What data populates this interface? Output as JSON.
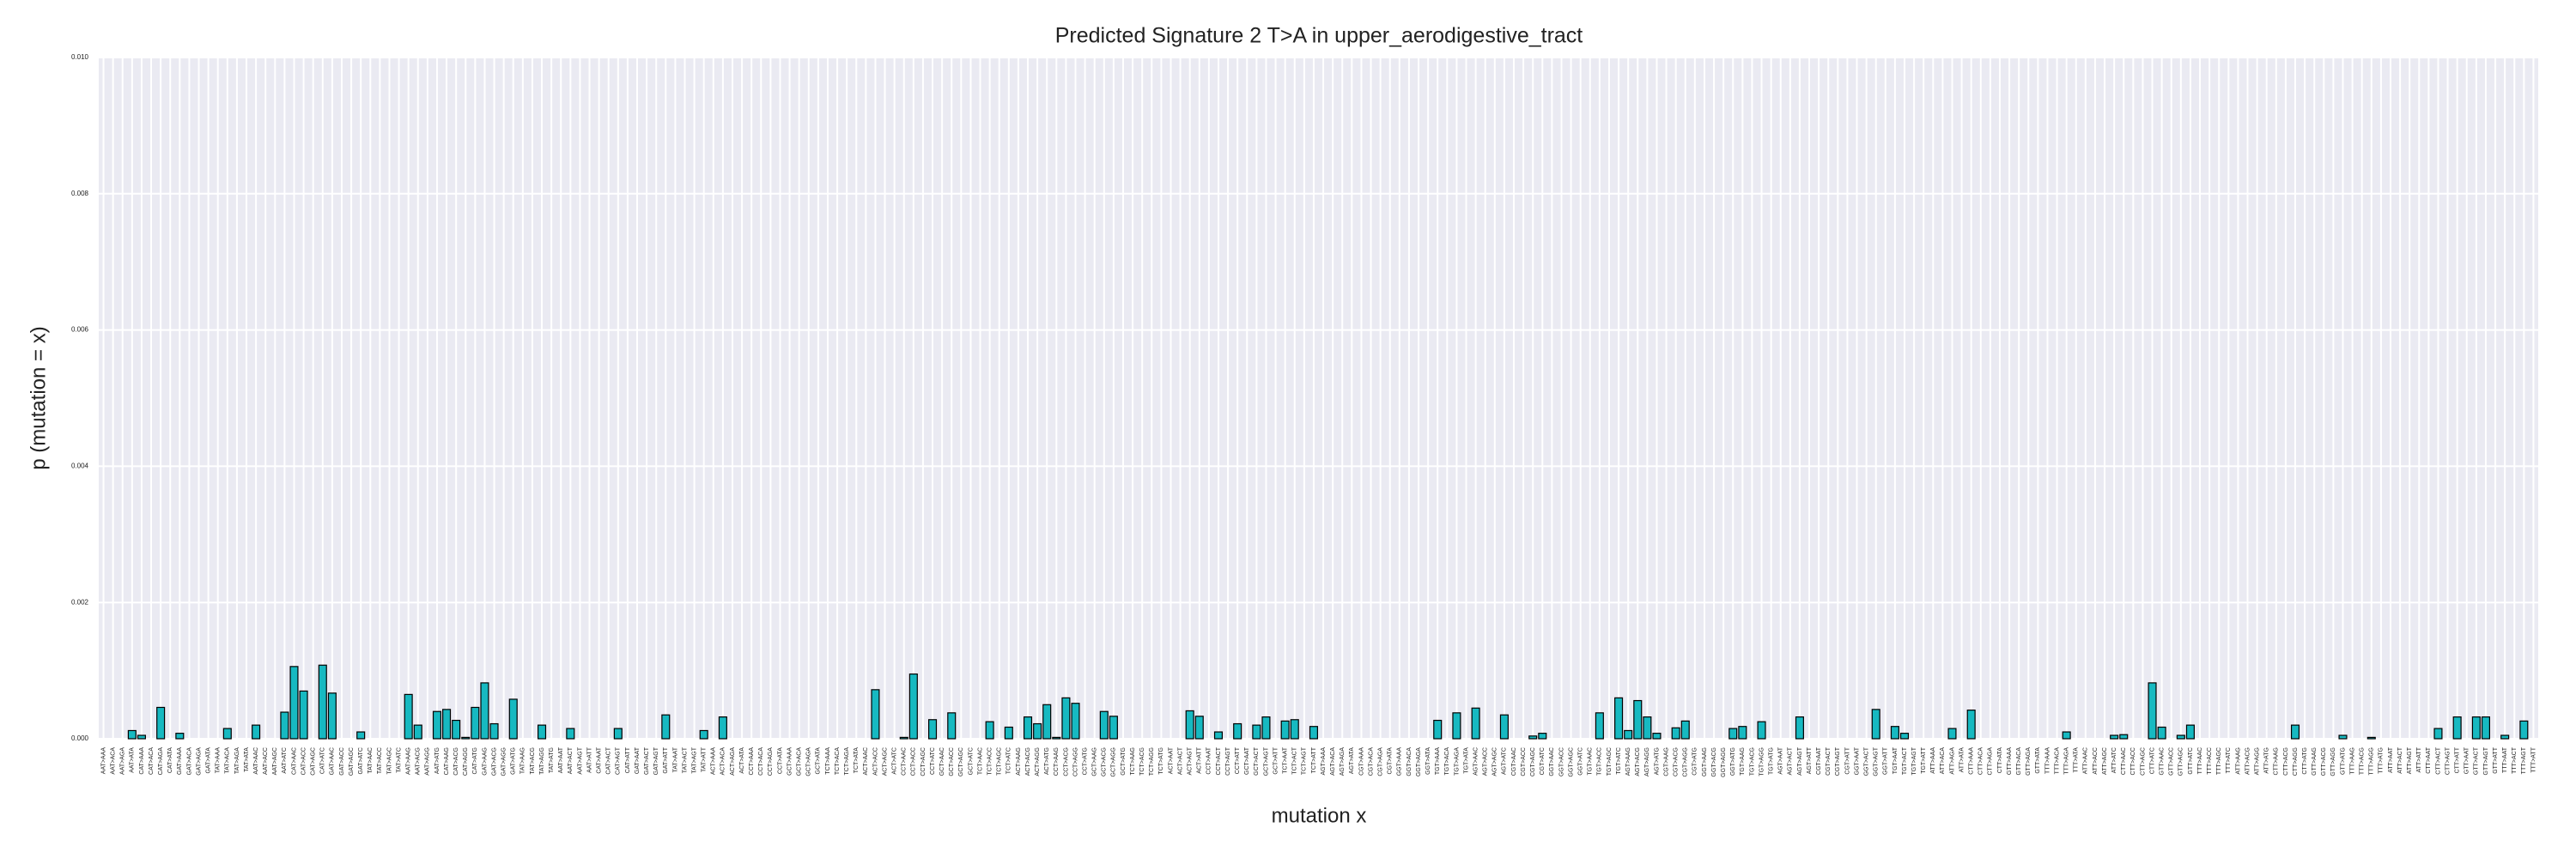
{
  "chart_data": {
    "type": "bar",
    "title": "Predicted Signature 2 T>A in upper_aerodigestive_tract",
    "xlabel": "mutation x",
    "ylabel": "p (mutation = x)",
    "color": "#17b9c1",
    "grid": true,
    "ylim": [
      0,
      0.01
    ],
    "yticks": [
      {
        "value": 0,
        "label": "0.000"
      },
      {
        "value": 0.002,
        "label": "0.002"
      },
      {
        "value": 0.004,
        "label": "0.004"
      },
      {
        "value": 0.006,
        "label": "0.006"
      },
      {
        "value": 0.008,
        "label": "0.008"
      },
      {
        "value": 0.01,
        "label": "0.010"
      }
    ],
    "categories": [
      "AAT>AAA",
      "AAT>ACA",
      "AAT>AGA",
      "AAT>ATA",
      "CAT>AAA",
      "CAT>ACA",
      "CAT>AGA",
      "CAT>ATA",
      "GAT>AAA",
      "GAT>ACA",
      "GAT>AGA",
      "GAT>ATA",
      "TAT>AAA",
      "TAT>ACA",
      "TAT>AGA",
      "TAT>ATA",
      "AAT>AAC",
      "AAT>ACC",
      "AAT>AGC",
      "AAT>ATC",
      "CAT>AAC",
      "CAT>ACC",
      "CAT>AGC",
      "CAT>ATC",
      "GAT>AAC",
      "GAT>ACC",
      "GAT>AGC",
      "GAT>ATC",
      "TAT>AAC",
      "TAT>ACC",
      "TAT>AGC",
      "TAT>ATC",
      "AAT>AAG",
      "AAT>ACG",
      "AAT>AGG",
      "AAT>ATG",
      "CAT>AAG",
      "CAT>ACG",
      "CAT>AGG",
      "CAT>ATG",
      "GAT>AAG",
      "GAT>ACG",
      "GAT>AGG",
      "GAT>ATG",
      "TAT>AAG",
      "TAT>ACG",
      "TAT>AGG",
      "TAT>ATG",
      "AAT>AAT",
      "AAT>ACT",
      "AAT>AGT",
      "AAT>ATT",
      "CAT>AAT",
      "CAT>ACT",
      "CAT>AGT",
      "CAT>ATT",
      "GAT>AAT",
      "GAT>ACT",
      "GAT>AGT",
      "GAT>ATT",
      "TAT>AAT",
      "TAT>ACT",
      "TAT>AGT",
      "TAT>ATT",
      "ACT>AAA",
      "ACT>ACA",
      "ACT>AGA",
      "ACT>ATA",
      "CCT>AAA",
      "CCT>ACA",
      "CCT>AGA",
      "CCT>ATA",
      "GCT>AAA",
      "GCT>ACA",
      "GCT>AGA",
      "GCT>ATA",
      "TCT>AAA",
      "TCT>ACA",
      "TCT>AGA",
      "TCT>ATA",
      "ACT>AAC",
      "ACT>ACC",
      "ACT>AGC",
      "ACT>ATC",
      "CCT>AAC",
      "CCT>ACC",
      "CCT>AGC",
      "CCT>ATC",
      "GCT>AAC",
      "GCT>ACC",
      "GCT>AGC",
      "GCT>ATC",
      "TCT>AAC",
      "TCT>ACC",
      "TCT>AGC",
      "TCT>ATC",
      "ACT>AAG",
      "ACT>ACG",
      "ACT>AGG",
      "ACT>ATG",
      "CCT>AAG",
      "CCT>ACG",
      "CCT>AGG",
      "CCT>ATG",
      "GCT>AAG",
      "GCT>ACG",
      "GCT>AGG",
      "GCT>ATG",
      "TCT>AAG",
      "TCT>ACG",
      "TCT>AGG",
      "TCT>ATG",
      "ACT>AAT",
      "ACT>ACT",
      "ACT>AGT",
      "ACT>ATT",
      "CCT>AAT",
      "CCT>ACT",
      "CCT>AGT",
      "CCT>ATT",
      "GCT>AAT",
      "GCT>ACT",
      "GCT>AGT",
      "GCT>ATT",
      "TCT>AAT",
      "TCT>ACT",
      "TCT>AGT",
      "TCT>ATT",
      "AGT>AAA",
      "AGT>ACA",
      "AGT>AGA",
      "AGT>ATA",
      "CGT>AAA",
      "CGT>ACA",
      "CGT>AGA",
      "CGT>ATA",
      "GGT>AAA",
      "GGT>ACA",
      "GGT>AGA",
      "GGT>ATA",
      "TGT>AAA",
      "TGT>ACA",
      "TGT>AGA",
      "TGT>ATA",
      "AGT>AAC",
      "AGT>ACC",
      "AGT>AGC",
      "AGT>ATC",
      "CGT>AAC",
      "CGT>ACC",
      "CGT>AGC",
      "CGT>ATC",
      "GGT>AAC",
      "GGT>ACC",
      "GGT>AGC",
      "GGT>ATC",
      "TGT>AAC",
      "TGT>ACC",
      "TGT>AGC",
      "TGT>ATC",
      "AGT>AAG",
      "AGT>ACG",
      "AGT>AGG",
      "AGT>ATG",
      "CGT>AAG",
      "CGT>ACG",
      "CGT>AGG",
      "CGT>ATG",
      "GGT>AAG",
      "GGT>ACG",
      "GGT>AGG",
      "GGT>ATG",
      "TGT>AAG",
      "TGT>ACG",
      "TGT>AGG",
      "TGT>ATG",
      "AGT>AAT",
      "AGT>ACT",
      "AGT>AGT",
      "AGT>ATT",
      "CGT>AAT",
      "CGT>ACT",
      "CGT>AGT",
      "CGT>ATT",
      "GGT>AAT",
      "GGT>ACT",
      "GGT>AGT",
      "GGT>ATT",
      "TGT>AAT",
      "TGT>ACT",
      "TGT>AGT",
      "TGT>ATT",
      "ATT>AAA",
      "ATT>ACA",
      "ATT>AGA",
      "ATT>ATA",
      "CTT>AAA",
      "CTT>ACA",
      "CTT>AGA",
      "CTT>ATA",
      "GTT>AAA",
      "GTT>ACA",
      "GTT>AGA",
      "GTT>ATA",
      "TTT>AAA",
      "TTT>ACA",
      "TTT>AGA",
      "TTT>ATA",
      "ATT>AAC",
      "ATT>ACC",
      "ATT>AGC",
      "ATT>ATC",
      "CTT>AAC",
      "CTT>ACC",
      "CTT>AGC",
      "CTT>ATC",
      "GTT>AAC",
      "GTT>ACC",
      "GTT>AGC",
      "GTT>ATC",
      "TTT>AAC",
      "TTT>ACC",
      "TTT>AGC",
      "TTT>ATC",
      "ATT>AAG",
      "ATT>ACG",
      "ATT>AGG",
      "ATT>ATG",
      "CTT>AAG",
      "CTT>ACG",
      "CTT>AGG",
      "CTT>ATG",
      "GTT>AAG",
      "GTT>ACG",
      "GTT>AGG",
      "GTT>ATG",
      "TTT>AAG",
      "TTT>ACG",
      "TTT>AGG",
      "TTT>ATG",
      "ATT>AAT",
      "ATT>ACT",
      "ATT>AGT",
      "ATT>ATT",
      "CTT>AAT",
      "CTT>ACT",
      "CTT>AGT",
      "CTT>ATT",
      "GTT>AAT",
      "GTT>ACT",
      "GTT>AGT",
      "GTT>ATT",
      "TTT>AAT",
      "TTT>ACT",
      "TTT>AGT",
      "TTT>ATT"
    ],
    "values": [
      0,
      0,
      0,
      0.00012,
      5e-05,
      0,
      0.00046,
      0,
      8e-05,
      0,
      0,
      0,
      0,
      0.00015,
      0,
      0,
      0.0002,
      0,
      0,
      0.00039,
      0.00106,
      0.0007,
      0,
      0.00108,
      0.00067,
      0,
      0,
      0.0001,
      0,
      0,
      0,
      0,
      0.00065,
      0.0002,
      0,
      0.0004,
      0.00043,
      0.00027,
      2e-05,
      0.00046,
      0.00082,
      0.00022,
      0,
      0.00058,
      0,
      0,
      0.0002,
      0,
      0,
      0.00015,
      0,
      0,
      0,
      0,
      0.00015,
      0,
      0,
      0,
      0,
      0.00035,
      0,
      0,
      0,
      0.00012,
      0,
      0.00032,
      0,
      0,
      0,
      0,
      0,
      0,
      0,
      0,
      0,
      0,
      0,
      0,
      0,
      0,
      0,
      0.00072,
      0,
      0,
      2e-05,
      0.00095,
      0,
      0.00028,
      0,
      0.00038,
      0,
      0,
      0,
      0.00025,
      0,
      0.00017,
      0,
      0.00032,
      0.00022,
      0.0005,
      2e-05,
      0.0006,
      0.00052,
      0,
      0,
      0.0004,
      0.00033,
      0,
      0,
      0,
      0,
      0,
      0,
      0,
      0.00041,
      0.00033,
      0,
      0.0001,
      0,
      0.00022,
      0,
      0.0002,
      0.00032,
      0,
      0.00026,
      0.00028,
      0,
      0.00018,
      0,
      0,
      0,
      0,
      0,
      0,
      0,
      0,
      0,
      0,
      0,
      0,
      0.00027,
      0,
      0.00038,
      0,
      0.00045,
      0,
      0,
      0.00035,
      0,
      0,
      4e-05,
      8e-05,
      0,
      0,
      0,
      0,
      0,
      0.00038,
      0,
      0.0006,
      0.00012,
      0.00056,
      0.00032,
      8e-05,
      0,
      0.00016,
      0.00026,
      0,
      0,
      0,
      0,
      0.00015,
      0.00018,
      0,
      0.00025,
      0,
      0,
      0,
      0.00032,
      0,
      0,
      0,
      0,
      0,
      0,
      0,
      0.00043,
      0,
      0.00018,
      8e-05,
      0,
      0,
      0,
      0,
      0.00015,
      0,
      0.00042,
      0,
      0,
      0,
      0,
      0,
      0,
      0,
      0,
      0,
      0.0001,
      0,
      0,
      0,
      0,
      5e-05,
      6e-05,
      0,
      0,
      0.00082,
      0.00017,
      0,
      5e-05,
      0.0002,
      0,
      0,
      0,
      0,
      0,
      0,
      0,
      0,
      0,
      0,
      0.0002,
      0,
      0,
      0,
      0,
      5e-05,
      0,
      0,
      2e-05,
      0,
      0,
      0,
      0,
      0,
      0,
      0.00015,
      0,
      0.00032,
      0,
      0.00032,
      0.00032,
      0,
      5e-05,
      0,
      0.00026,
      0
    ]
  }
}
